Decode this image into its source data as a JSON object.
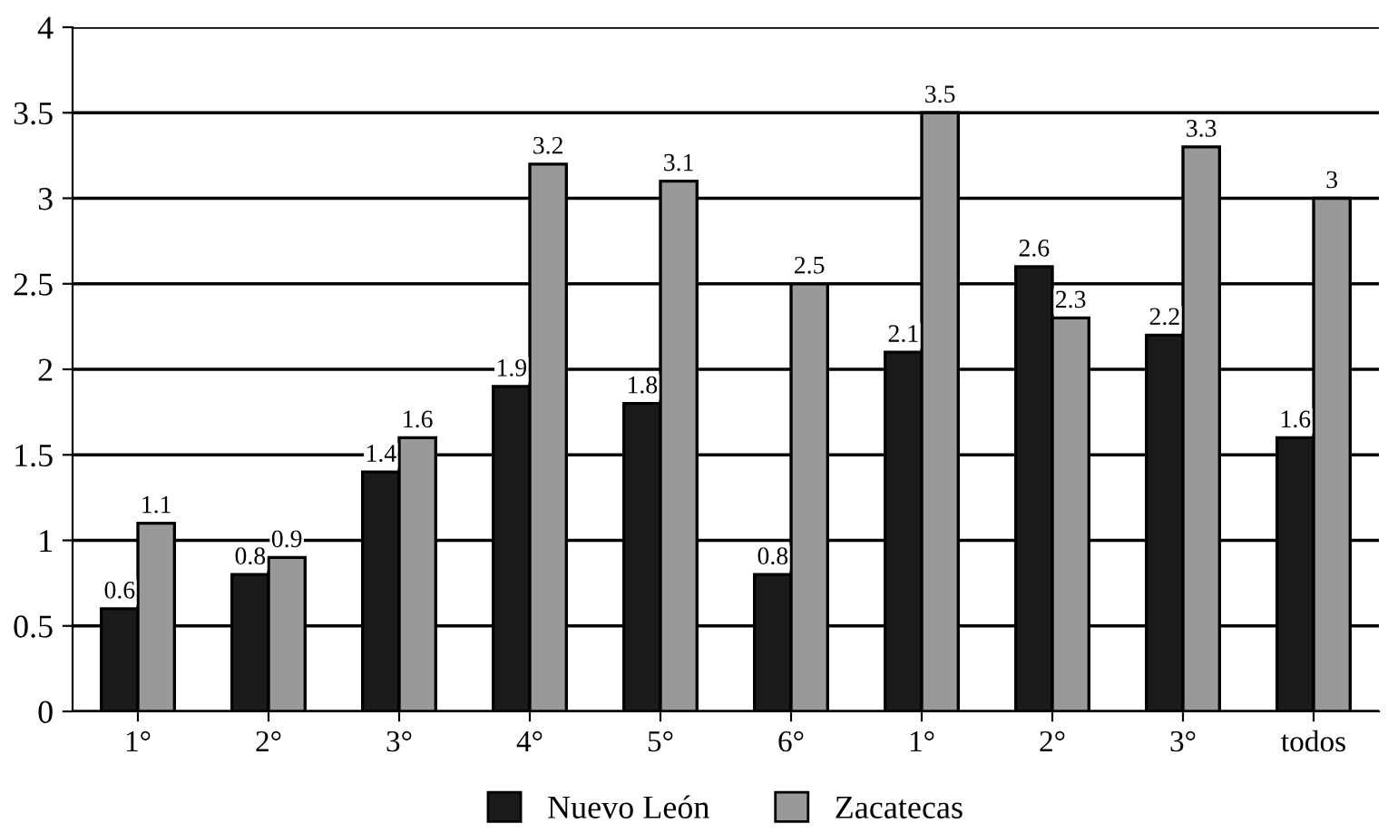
{
  "chart_data": {
    "type": "bar",
    "categories": [
      "1°",
      "2°",
      "3°",
      "4°",
      "5°",
      "6°",
      "1°",
      "2°",
      "3°",
      "todos"
    ],
    "series": [
      {
        "name": "Nuevo León",
        "color": "#1a1a1a",
        "values": [
          0.6,
          0.8,
          1.4,
          1.9,
          1.8,
          0.8,
          2.1,
          2.6,
          2.2,
          1.6
        ]
      },
      {
        "name": "Zacatecas",
        "color": "#999999",
        "values": [
          1.1,
          0.9,
          1.6,
          3.2,
          3.1,
          2.5,
          3.5,
          2.3,
          3.3,
          3
        ]
      }
    ],
    "ylim": [
      0,
      4
    ],
    "yticks": [
      0,
      0.5,
      1,
      1.5,
      2,
      2.5,
      3,
      3.5,
      4
    ],
    "grid": "y",
    "legend": "bottom",
    "data_labels": true
  }
}
